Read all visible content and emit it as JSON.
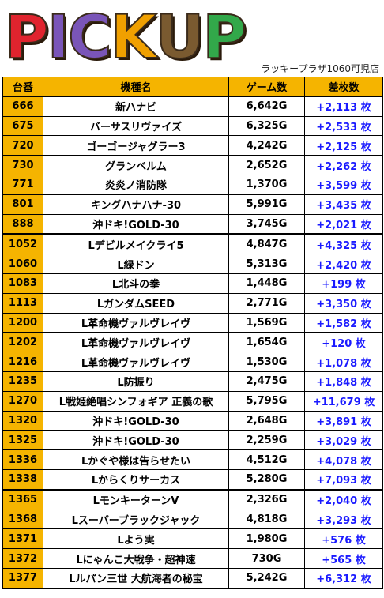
{
  "banner": {
    "letters": [
      {
        "ch": "P",
        "color": "#e0242e"
      },
      {
        "ch": "I",
        "color": "#7a55b8"
      },
      {
        "ch": "C",
        "color": "#7a55b8"
      },
      {
        "ch": "K",
        "color": "#f0a000"
      },
      {
        "ch": "U",
        "color": "#7a5a30"
      },
      {
        "ch": "P",
        "color": "#32a84a"
      }
    ],
    "subtitle": "ラッキープラザ1060可児店"
  },
  "table": {
    "headers": [
      "台番",
      "機種名",
      "ゲーム数",
      "差枚数"
    ],
    "rows": [
      {
        "num": "666",
        "name": "新ハナビ",
        "games": "6,642G",
        "diff": "+2,113 枚"
      },
      {
        "num": "675",
        "name": "バーサスリヴァイズ",
        "games": "6,325G",
        "diff": "+2,533 枚"
      },
      {
        "num": "720",
        "name": "ゴーゴージャグラー3",
        "games": "4,242G",
        "diff": "+2,125 枚"
      },
      {
        "num": "730",
        "name": "グランベルム",
        "games": "2,652G",
        "diff": "+2,262 枚"
      },
      {
        "num": "771",
        "name": "炎炎ノ消防隊",
        "games": "1,370G",
        "diff": "+3,599 枚"
      },
      {
        "num": "801",
        "name": "キングハナハナ-30",
        "games": "5,991G",
        "diff": "+3,435 枚"
      },
      {
        "num": "888",
        "name": "沖ドキ!GOLD-30",
        "games": "3,745G",
        "diff": "+2,021 枚"
      },
      {
        "num": "1052",
        "name": "Lデビルメイクライ5",
        "games": "4,847G",
        "diff": "+4,325 枚"
      },
      {
        "num": "1060",
        "name": "L緑ドン",
        "games": "5,313G",
        "diff": "+2,420 枚"
      },
      {
        "num": "1083",
        "name": "L北斗の拳",
        "games": "1,448G",
        "diff": "+199 枚"
      },
      {
        "num": "1113",
        "name": "LガンダムSEED",
        "games": "2,771G",
        "diff": "+3,350 枚"
      },
      {
        "num": "1200",
        "name": "L革命機ヴァルヴレイヴ",
        "games": "1,569G",
        "diff": "+1,582 枚"
      },
      {
        "num": "1202",
        "name": "L革命機ヴァルヴレイヴ",
        "games": "1,654G",
        "diff": "+120 枚"
      },
      {
        "num": "1216",
        "name": "L革命機ヴァルヴレイヴ",
        "games": "1,530G",
        "diff": "+1,078 枚"
      },
      {
        "num": "1235",
        "name": "L防振り",
        "games": "2,475G",
        "diff": "+1,848 枚"
      },
      {
        "num": "1270",
        "name": "L戦姫絶唱シンフォギア 正義の歌",
        "games": "5,795G",
        "diff": "+11,679 枚"
      },
      {
        "num": "1320",
        "name": "沖ドキ!GOLD-30",
        "games": "2,648G",
        "diff": "+3,891 枚"
      },
      {
        "num": "1325",
        "name": "沖ドキ!GOLD-30",
        "games": "2,259G",
        "diff": "+3,029 枚"
      },
      {
        "num": "1336",
        "name": "Lかぐや様は告らせたい",
        "games": "4,512G",
        "diff": "+4,078 枚"
      },
      {
        "num": "1338",
        "name": "Lからくりサーカス",
        "games": "5,280G",
        "diff": "+7,093 枚"
      },
      {
        "num": "1365",
        "name": "LモンキーターンV",
        "games": "2,326G",
        "diff": "+2,040 枚"
      },
      {
        "num": "1368",
        "name": "Lスーパーブラックジャック",
        "games": "4,818G",
        "diff": "+3,293 枚"
      },
      {
        "num": "1371",
        "name": "Lよう実",
        "games": "1,980G",
        "diff": "+576 枚"
      },
      {
        "num": "1372",
        "name": "Lにゃんこ大戦争・超神速",
        "games": "730G",
        "diff": "+565 枚"
      },
      {
        "num": "1377",
        "name": "Lルパン三世 大航海者の秘宝",
        "games": "5,242G",
        "diff": "+6,312 枚"
      }
    ]
  }
}
